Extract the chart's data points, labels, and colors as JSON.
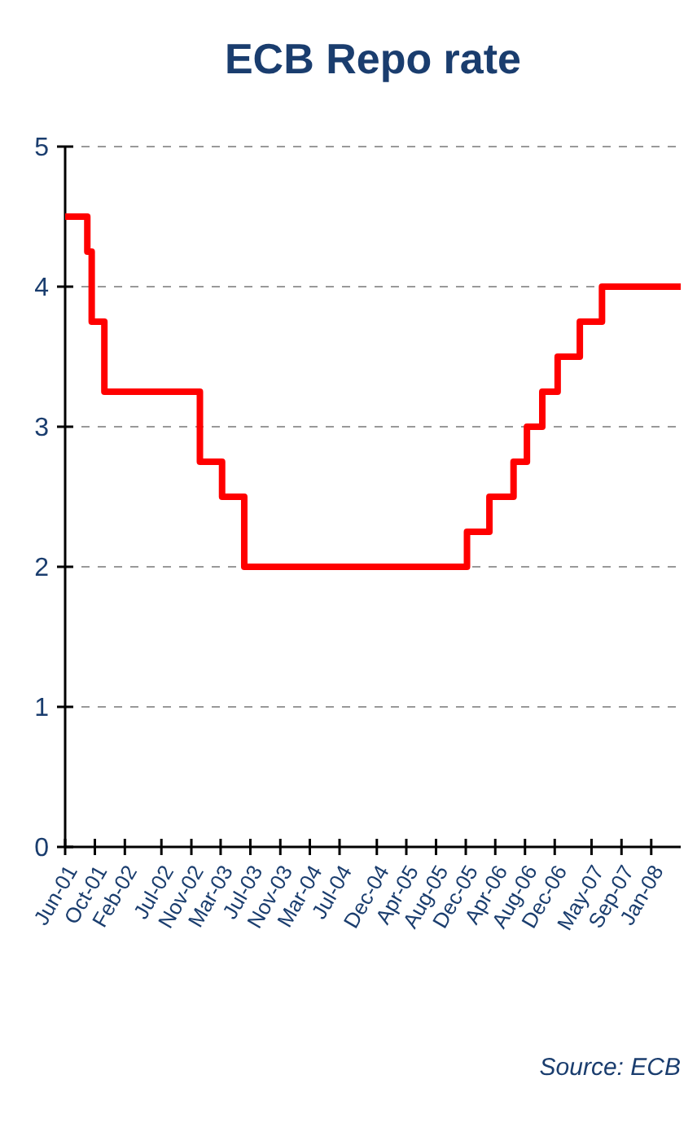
{
  "chart_data": {
    "type": "step",
    "title": "ECB Repo rate",
    "annotations": [
      "Source: ECB"
    ],
    "x": [
      "2001-06",
      "2001-08-31",
      "2001-09-18",
      "2001-11-09",
      "2002-12-06",
      "2003-03-07",
      "2003-06-06",
      "2005-12-06",
      "2006-03-08",
      "2006-06-15",
      "2006-08-09",
      "2006-10-11",
      "2006-12-13",
      "2007-03-14",
      "2007-06-13",
      "2008-05"
    ],
    "series": [
      {
        "color": "#ff0000",
        "values": [
          4.5,
          4.25,
          3.75,
          3.25,
          2.75,
          2.5,
          2,
          2.25,
          2.5,
          2.75,
          3,
          3.25,
          3.5,
          3.75,
          4,
          4
        ]
      }
    ],
    "xlim": [
      "2001-06",
      "2008-05"
    ],
    "xticks": [
      {
        "value": "2001-06",
        "label": "Jun-01"
      },
      {
        "value": "2001-10",
        "label": "Oct-01"
      },
      {
        "value": "2002-02",
        "label": "Feb-02"
      },
      {
        "value": "2002-07",
        "label": "Jul-02"
      },
      {
        "value": "2002-11",
        "label": "Nov-02"
      },
      {
        "value": "2003-03",
        "label": "Mar-03"
      },
      {
        "value": "2003-07",
        "label": "Jul-03"
      },
      {
        "value": "2003-11",
        "label": "Nov-03"
      },
      {
        "value": "2004-03",
        "label": "Mar-04"
      },
      {
        "value": "2004-07",
        "label": "Jul-04"
      },
      {
        "value": "2004-12",
        "label": "Dec-04"
      },
      {
        "value": "2005-04",
        "label": "Apr-05"
      },
      {
        "value": "2005-08",
        "label": "Aug-05"
      },
      {
        "value": "2005-12",
        "label": "Dec-05"
      },
      {
        "value": "2006-04",
        "label": "Apr-06"
      },
      {
        "value": "2006-08",
        "label": "Aug-06"
      },
      {
        "value": "2006-12",
        "label": "Dec-06"
      },
      {
        "value": "2007-05",
        "label": "May-07"
      },
      {
        "value": "2007-09",
        "label": "Sep-07"
      },
      {
        "value": "2008-01",
        "label": "Jan-08"
      }
    ],
    "ylim": [
      0,
      5
    ],
    "yticks": [
      0,
      1,
      2,
      3,
      4,
      5
    ],
    "grid": "y",
    "marker": "none",
    "line_style": "solid"
  }
}
